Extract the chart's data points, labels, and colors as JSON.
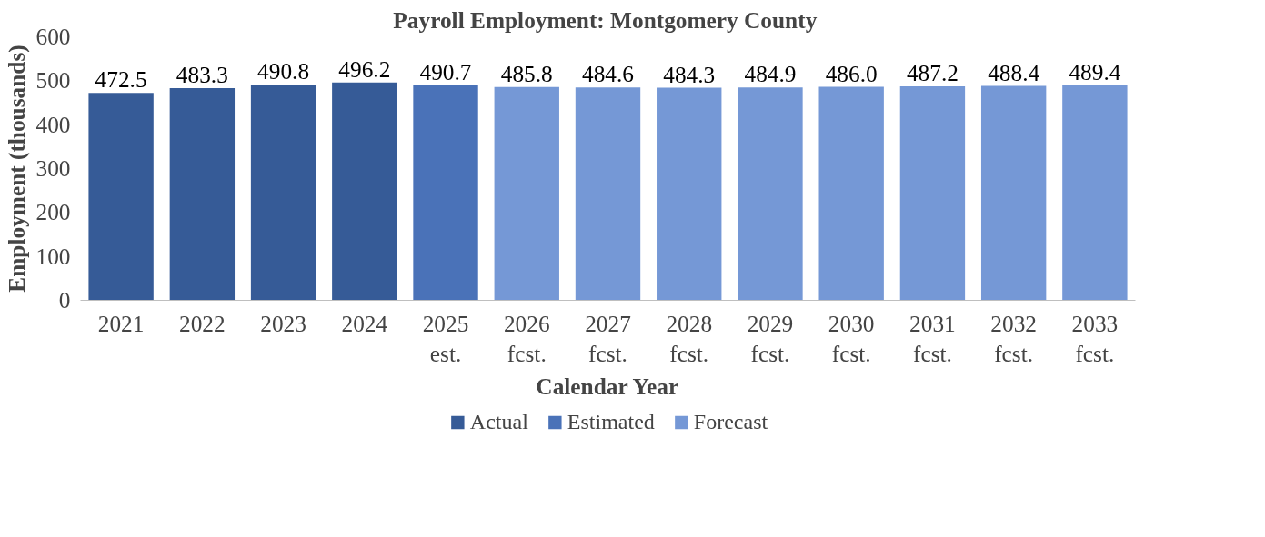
{
  "chart_data": {
    "type": "bar",
    "title": "Payroll Employment:  Montgomery County",
    "xlabel": "Calendar Year",
    "ylabel": "Employment (thousands)",
    "categories": [
      "2021",
      "2022",
      "2023",
      "2024",
      "2025\nest.",
      "2026\nfcst.",
      "2027\nfcst.",
      "2028\nfcst.",
      "2029\nfcst.",
      "2030\nfcst.",
      "2031\nfcst.",
      "2032\nfcst.",
      "2033\nfcst."
    ],
    "series": [
      {
        "name": "Actual",
        "color": "#365b97",
        "values": [
          472.5,
          483.3,
          490.8,
          496.2,
          null,
          null,
          null,
          null,
          null,
          null,
          null,
          null,
          null
        ]
      },
      {
        "name": "Estimated",
        "color": "#4a72b8",
        "values": [
          null,
          null,
          null,
          null,
          490.7,
          null,
          null,
          null,
          null,
          null,
          null,
          null,
          null
        ]
      },
      {
        "name": "Forecast",
        "color": "#7598d6",
        "values": [
          null,
          null,
          null,
          null,
          null,
          485.8,
          484.6,
          484.3,
          484.9,
          486.0,
          487.2,
          488.4,
          489.4
        ]
      }
    ],
    "value_labels": [
      "472.5",
      "483.3",
      "490.8",
      "496.2",
      "490.7",
      "485.8",
      "484.6",
      "484.3",
      "484.9",
      "486.0",
      "487.2",
      "488.4",
      "489.4"
    ],
    "ylim": [
      0,
      600
    ],
    "yticks": [
      0,
      100,
      200,
      300,
      400,
      500,
      600
    ],
    "grid": false,
    "legend": "bottom"
  }
}
